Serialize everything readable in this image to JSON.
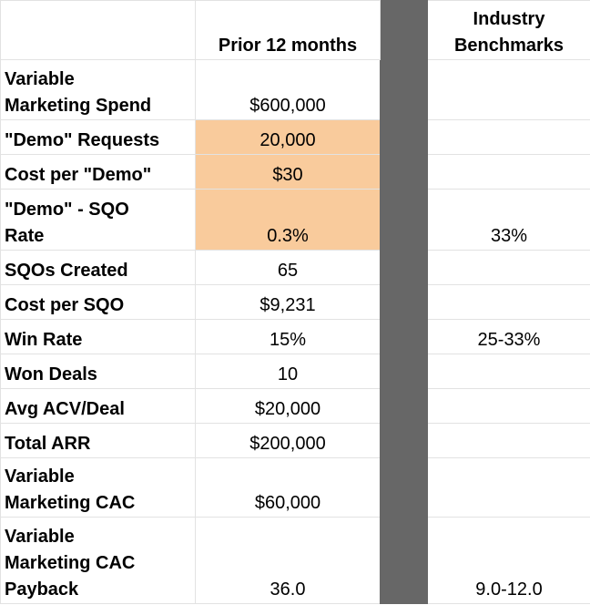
{
  "header": {
    "col_prior": "Prior 12 months",
    "col_bench_line1": "Industry",
    "col_bench_line2": "Benchmarks"
  },
  "rows": [
    {
      "label_line1": "Variable",
      "label_line2": "Marketing Spend",
      "prior": "$600,000",
      "bench": ""
    },
    {
      "label": "\"Demo\" Requests",
      "prior": "20,000",
      "bench": "",
      "highlight": true
    },
    {
      "label": "Cost per \"Demo\"",
      "prior": "$30",
      "bench": "",
      "highlight": true
    },
    {
      "label_line1": "\"Demo\" - SQO",
      "label_line2": "Rate",
      "prior": "0.3%",
      "bench": "33%",
      "highlight": true
    },
    {
      "label": "SQOs Created",
      "prior": "65",
      "bench": ""
    },
    {
      "label": "Cost per SQO",
      "prior": "$9,231",
      "bench": ""
    },
    {
      "label": "Win Rate",
      "prior": "15%",
      "bench": "25-33%"
    },
    {
      "label": "Won Deals",
      "prior": "10",
      "bench": ""
    },
    {
      "label": "Avg ACV/Deal",
      "prior": "$20,000",
      "bench": ""
    },
    {
      "label": "Total ARR",
      "prior": "$200,000",
      "bench": ""
    },
    {
      "label_line1": "Variable",
      "label_line2": "Marketing CAC",
      "prior": "$60,000",
      "bench": ""
    },
    {
      "label_line1": "Variable",
      "label_line2": "Marketing CAC",
      "label_line3": "Payback",
      "prior": "36.0",
      "bench": "9.0-12.0"
    }
  ],
  "colors": {
    "highlight": "#f9cb9c",
    "separator": "#676767",
    "grid": "#e2e2e2"
  }
}
